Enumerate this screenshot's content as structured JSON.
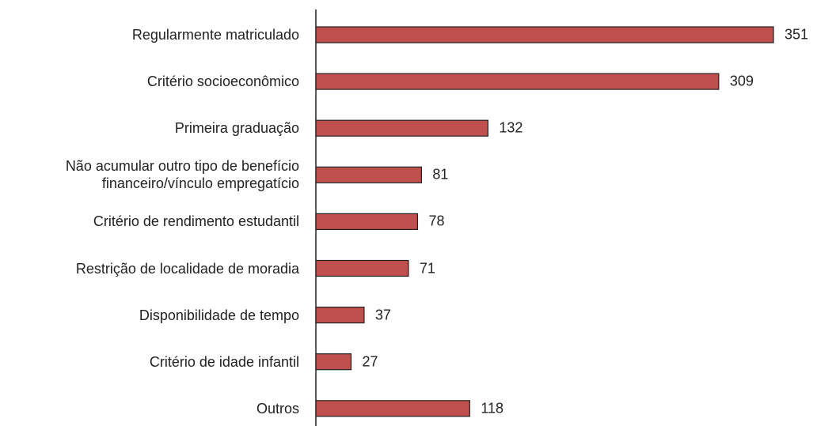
{
  "chart_data": {
    "type": "barh",
    "categories": [
      "Regularmente matriculado",
      "Critério socioeconômico",
      "Primeira graduação",
      "Não acumular outro tipo de benefício\nfinanceiro/vínculo empregatício",
      "Critério de rendimento estudantil",
      "Restrição de localidade de moradia",
      "Disponibilidade de tempo",
      "Critério de idade infantil",
      "Outros"
    ],
    "values": [
      351,
      309,
      132,
      81,
      78,
      71,
      37,
      27,
      118
    ],
    "color": "#c0504d"
  }
}
